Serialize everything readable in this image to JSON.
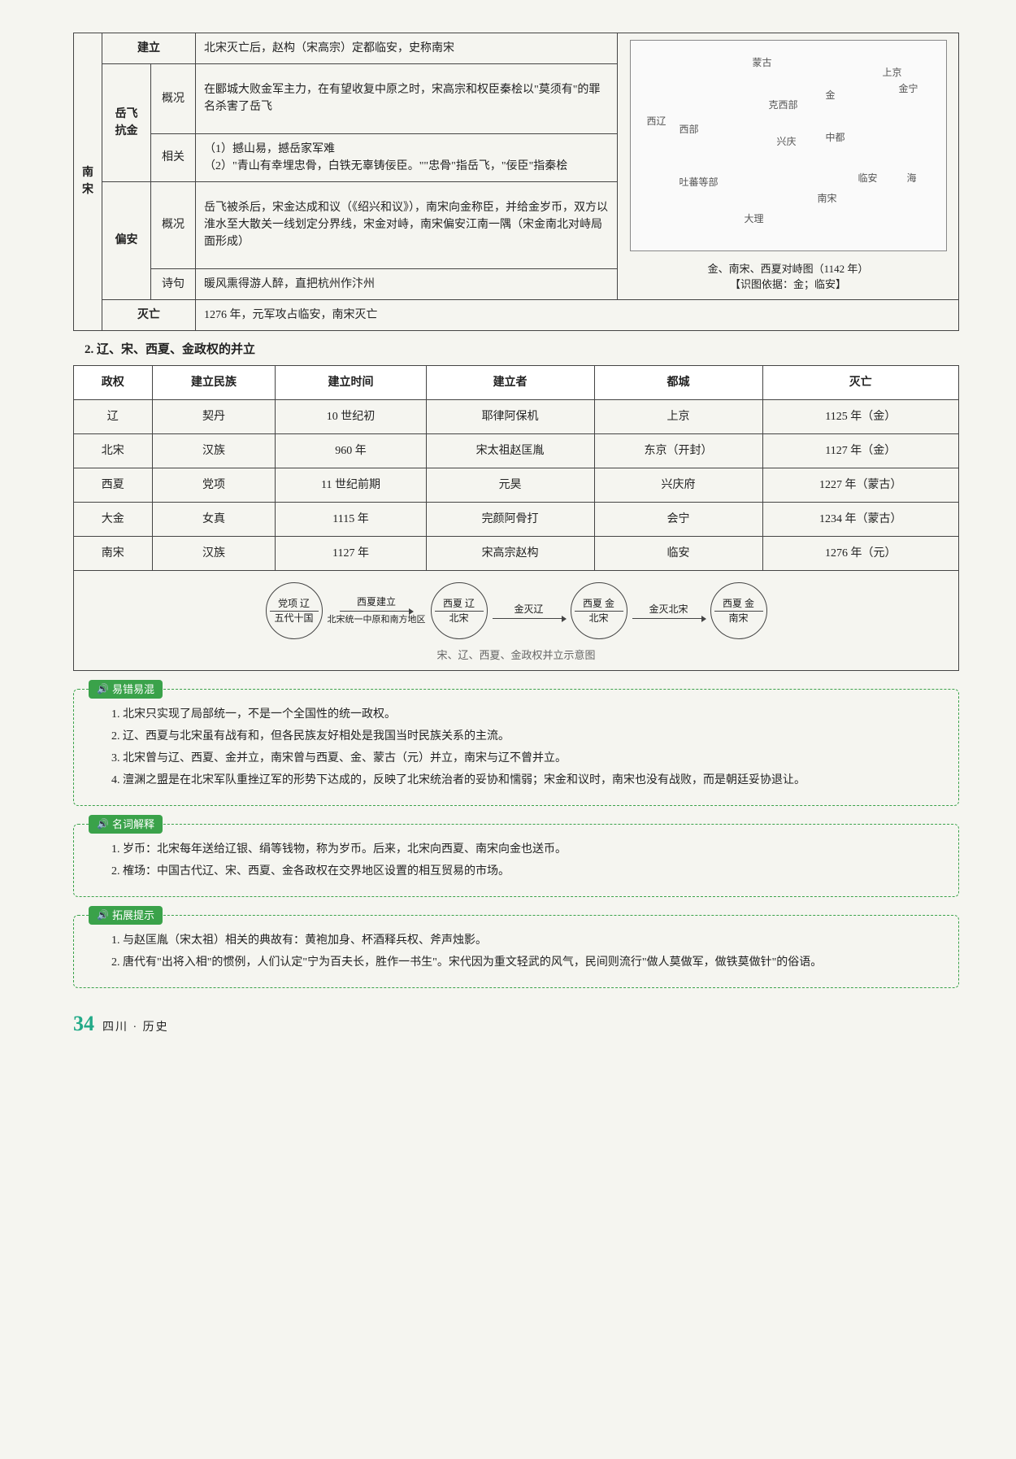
{
  "table1": {
    "vlabel": "南宋",
    "rows": {
      "jianli": {
        "label": "建立",
        "text": "北宋灭亡后，赵构（宋高宗）定都临安，史称南宋"
      },
      "yuefei": {
        "label": "岳飞抗金",
        "gaikuang": {
          "sub": "概况",
          "text": "在郾城大败金军主力，在有望收复中原之时，宋高宗和权臣秦桧以\"莫须有\"的罪名杀害了岳飞"
        },
        "xiangguan": {
          "sub": "相关",
          "text": "（1）撼山易，撼岳家军难\n（2）\"青山有幸埋忠骨，白铁无辜铸佞臣。\"\"忠骨\"指岳飞，\"佞臣\"指秦桧"
        }
      },
      "pianan": {
        "label": "偏安",
        "gaikuang": {
          "sub": "概况",
          "text": "岳飞被杀后，宋金达成和议（《绍兴和议》），南宋向金称臣，并给金岁币，双方以淮水至大散关一线划定分界线，宋金对峙，南宋偏安江南一隅（宋金南北对峙局面形成）"
        },
        "shiju": {
          "sub": "诗句",
          "text": "暖风熏得游人醉，直把杭州作汴州"
        }
      },
      "miewang": {
        "label": "灭亡",
        "text": "1276 年，元军攻占临安，南宋灭亡"
      }
    },
    "map": {
      "caption": "金、南宋、西夏对峙图（1142 年）",
      "note": "【识图依据：金；临安】",
      "labels": [
        "蒙古",
        "金",
        "上京",
        "金宁",
        "克西部",
        "西部",
        "西辽",
        "兴庆",
        "中都",
        "临安",
        "吐蕃等部",
        "大理",
        "南宋",
        "海"
      ]
    }
  },
  "section2_title": "2. 辽、宋、西夏、金政权的并立",
  "table2": {
    "headers": [
      "政权",
      "建立民族",
      "建立时间",
      "建立者",
      "都城",
      "灭亡"
    ],
    "rows": [
      [
        "辽",
        "契丹",
        "10 世纪初",
        "耶律阿保机",
        "上京",
        "1125 年（金）"
      ],
      [
        "北宋",
        "汉族",
        "960 年",
        "宋太祖赵匡胤",
        "东京（开封）",
        "1127 年（金）"
      ],
      [
        "西夏",
        "党项",
        "11 世纪前期",
        "元昊",
        "兴庆府",
        "1227 年（蒙古）"
      ],
      [
        "大金",
        "女真",
        "1115 年",
        "完颜阿骨打",
        "会宁",
        "1234 年（蒙古）"
      ],
      [
        "南宋",
        "汉族",
        "1127 年",
        "宋高宗赵构",
        "临安",
        "1276 年（元）"
      ]
    ]
  },
  "diagram": {
    "nodes": [
      {
        "top": "党项  辽",
        "bot": "五代十国"
      },
      {
        "top": "西夏  辽",
        "bot": "北宋"
      },
      {
        "top": "西夏  金",
        "bot": "北宋"
      },
      {
        "top": "西夏  金",
        "bot": "南宋"
      }
    ],
    "arrows": [
      {
        "top": "西夏建立",
        "bot": "北宋统一中原和南方地区"
      },
      {
        "top": "金灭辽",
        "bot": ""
      },
      {
        "top": "金灭北宋",
        "bot": ""
      }
    ],
    "caption": "宋、辽、西夏、金政权并立示意图"
  },
  "box_yicuo": {
    "tag": "易错易混",
    "items": [
      "1. 北宋只实现了局部统一，不是一个全国性的统一政权。",
      "2. 辽、西夏与北宋虽有战有和，但各民族友好相处是我国当时民族关系的主流。",
      "3. 北宋曾与辽、西夏、金并立，南宋曾与西夏、金、蒙古（元）并立，南宋与辽不曾并立。",
      "4. 澶渊之盟是在北宋军队重挫辽军的形势下达成的，反映了北宋统治者的妥协和懦弱；宋金和议时，南宋也没有战败，而是朝廷妥协退让。"
    ]
  },
  "box_mingci": {
    "tag": "名词解释",
    "items": [
      "1. 岁币：北宋每年送给辽银、绢等钱物，称为岁币。后来，北宋向西夏、南宋向金也送币。",
      "2. 榷场：中国古代辽、宋、西夏、金各政权在交界地区设置的相互贸易的市场。"
    ]
  },
  "box_tuozhan": {
    "tag": "拓展提示",
    "items": [
      "1. 与赵匡胤（宋太祖）相关的典故有：黄袍加身、杯酒释兵权、斧声烛影。",
      "2. 唐代有\"出将入相\"的惯例，人们认定\"宁为百夫长，胜作一书生\"。宋代因为重文轻武的风气，民间则流行\"做人莫做军，做铁莫做针\"的俗语。"
    ]
  },
  "footer": {
    "page": "34",
    "text": "四川 · 历史"
  }
}
